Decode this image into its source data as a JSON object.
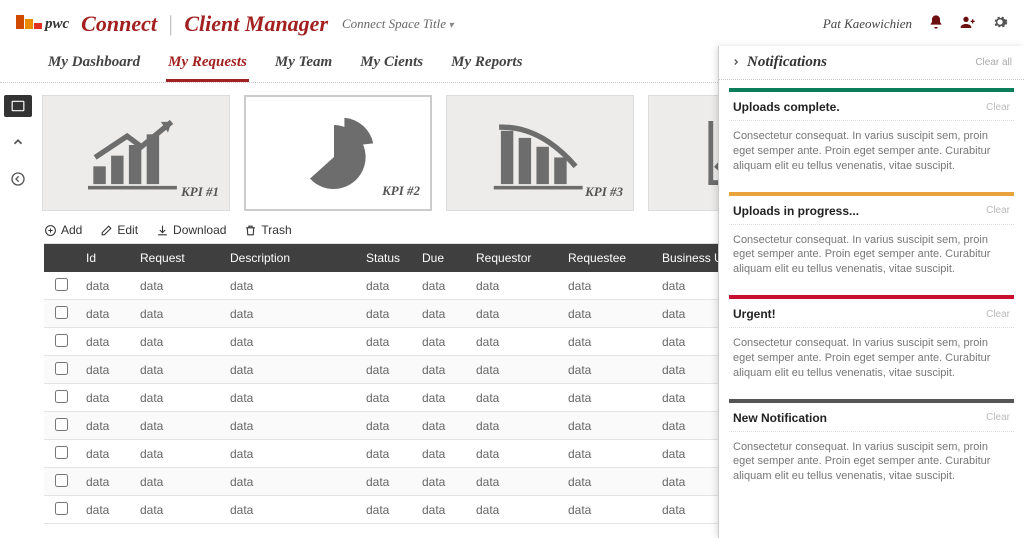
{
  "brand": {
    "logo_text": "pwc",
    "app_title_a": "Connect",
    "app_title_b": "Client Manager"
  },
  "space_selector": "Connect Space Title",
  "user_name": "Pat Kaeowichien",
  "tabs": [
    {
      "label": "My Dashboard",
      "active": false
    },
    {
      "label": "My Requests",
      "active": true
    },
    {
      "label": "My Team",
      "active": false
    },
    {
      "label": "My Cients",
      "active": false
    },
    {
      "label": "My Reports",
      "active": false
    }
  ],
  "kpis": [
    {
      "label": "KPI #1"
    },
    {
      "label": "KPI #2"
    },
    {
      "label": "KPI #3"
    },
    {
      "label": ""
    }
  ],
  "toolbar": {
    "add": "Add",
    "edit": "Edit",
    "download": "Download",
    "trash": "Trash"
  },
  "grid": {
    "columns": [
      "Id",
      "Request",
      "Description",
      "Status",
      "Due",
      "Requestor",
      "Requestee",
      "Business Unit"
    ],
    "row_value": "data",
    "row_count": 9
  },
  "notifications": {
    "panel_title": "Notifications",
    "clear_all": "Clear all",
    "clear": "Clear",
    "body_text": "Consectetur consequat. In varius suscipit sem, proin eget semper ante. Proin eget semper ante. Curabitur aliquam elit eu tellus venenatis, vitae suscipit.",
    "items": [
      {
        "title": "Uploads complete.",
        "color": "#0a7d5a"
      },
      {
        "title": "Uploads in progress...",
        "color": "#e8a33d"
      },
      {
        "title": "Urgent!",
        "color": "#c8102e"
      },
      {
        "title": "New Notification",
        "color": "#555555"
      }
    ]
  }
}
